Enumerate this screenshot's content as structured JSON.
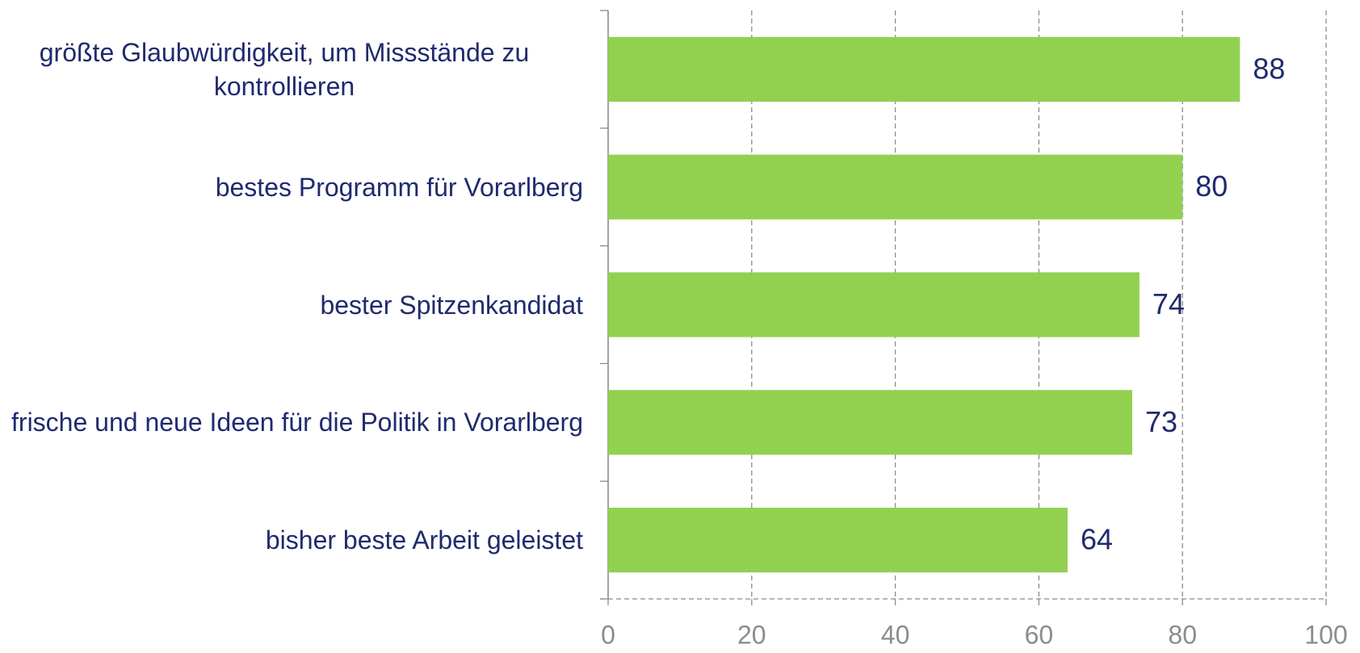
{
  "chart_data": {
    "type": "bar",
    "orientation": "horizontal",
    "categories": [
      "größte Glaubwürdigkeit, um Missstände zu kontrollieren",
      "bestes Programm für Vorarlberg",
      "bester Spitzenkandidat",
      "frische und neue Ideen für die Politik in Vorarlberg",
      "bisher beste Arbeit geleistet"
    ],
    "values": [
      88,
      80,
      74,
      73,
      64
    ],
    "color": "#92d050",
    "xlim": [
      0,
      100
    ],
    "xticks": [
      0,
      20,
      40,
      60,
      80,
      100
    ],
    "grid": true
  }
}
